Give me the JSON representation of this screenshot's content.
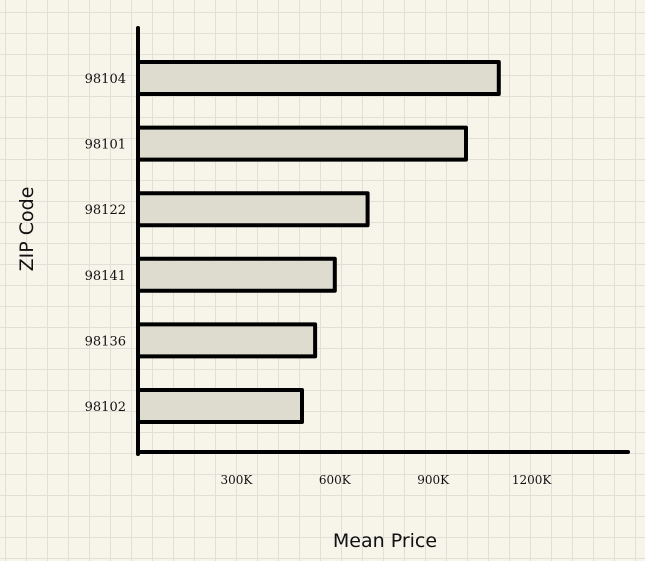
{
  "chart_data": {
    "type": "bar",
    "orientation": "horizontal",
    "categories": [
      "98104",
      "98101",
      "98122",
      "98141",
      "98136",
      "98102"
    ],
    "values": [
      1100000,
      1000000,
      700000,
      600000,
      540000,
      500000
    ],
    "xlabel": "Mean Price",
    "ylabel": "ZIP Code",
    "xlim": [
      0,
      1500000
    ],
    "xticks": [
      300000,
      600000,
      900000,
      1200000
    ],
    "xtick_labels": [
      "300K",
      "600K",
      "900K",
      "1200K"
    ],
    "grid": true,
    "bar_fill": "#dddccf",
    "bar_stroke": "#000000"
  }
}
